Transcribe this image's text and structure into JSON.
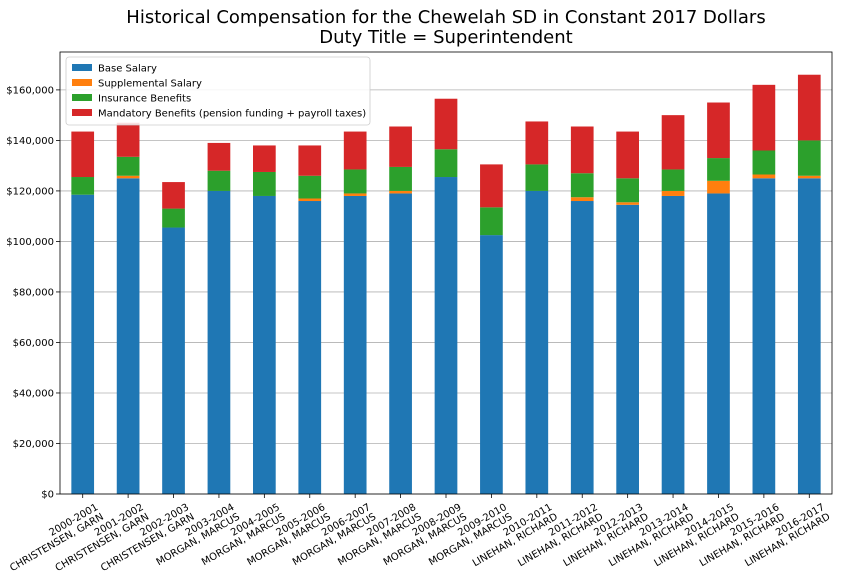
{
  "chart_data": {
    "type": "bar",
    "stacked": true,
    "title": "Historical Compensation for the Chewelah SD in Constant 2017 Dollars",
    "subtitle": "Duty Title = Superintendent",
    "xlabel": "",
    "ylabel": "",
    "ylim": [
      0,
      175000
    ],
    "yticks": [
      0,
      20000,
      40000,
      60000,
      80000,
      100000,
      120000,
      140000,
      160000
    ],
    "ytick_labels": [
      "$0",
      "$20,000",
      "$40,000",
      "$60,000",
      "$80,000",
      "$100,000",
      "$120,000",
      "$140,000",
      "$160,000"
    ],
    "grid": "y",
    "legend_position": "top-left",
    "categories": [
      [
        "2000-2001",
        "CHRISTENSEN, GARN"
      ],
      [
        "2001-2002",
        "CHRISTENSEN, GARN"
      ],
      [
        "2002-2003",
        "CHRISTENSEN, GARN"
      ],
      [
        "2003-2004",
        "MORGAN, MARCUS"
      ],
      [
        "2004-2005",
        "MORGAN, MARCUS"
      ],
      [
        "2005-2006",
        "MORGAN, MARCUS"
      ],
      [
        "2006-2007",
        "MORGAN, MARCUS"
      ],
      [
        "2007-2008",
        "MORGAN, MARCUS"
      ],
      [
        "2008-2009",
        "MORGAN, MARCUS"
      ],
      [
        "2009-2010",
        "MORGAN, MARCUS"
      ],
      [
        "2010-2011",
        "LINEHAN, RICHARD"
      ],
      [
        "2011-2012",
        "LINEHAN, RICHARD"
      ],
      [
        "2012-2013",
        "LINEHAN, RICHARD"
      ],
      [
        "2013-2014",
        "LINEHAN, RICHARD"
      ],
      [
        "2014-2015",
        "LINEHAN, RICHARD"
      ],
      [
        "2015-2016",
        "LINEHAN, RICHARD"
      ],
      [
        "2016-2017",
        "LINEHAN, RICHARD"
      ]
    ],
    "series": [
      {
        "name": "Base Salary",
        "color": "#1f77b4",
        "values": [
          118500,
          125000,
          105500,
          120000,
          118000,
          116000,
          118000,
          119000,
          125500,
          102500,
          120000,
          116000,
          114500,
          118000,
          119000,
          125000,
          125000
        ]
      },
      {
        "name": "Supplemental Salary",
        "color": "#ff7f0e",
        "values": [
          0,
          1000,
          0,
          0,
          0,
          1000,
          1000,
          1000,
          0,
          0,
          0,
          1500,
          1000,
          2000,
          5000,
          1500,
          1000
        ]
      },
      {
        "name": "Insurance Benefits",
        "color": "#2ca02c",
        "values": [
          7000,
          7500,
          7500,
          8000,
          9500,
          9000,
          9500,
          9500,
          11000,
          11000,
          10500,
          9500,
          9500,
          8500,
          9000,
          9500,
          14000
        ]
      },
      {
        "name": "Mandatory Benefits (pension funding + payroll taxes)",
        "color": "#d62728",
        "values": [
          18000,
          13500,
          10500,
          11000,
          10500,
          12000,
          15000,
          16000,
          20000,
          17000,
          17000,
          18500,
          18500,
          21500,
          22000,
          26000,
          26000
        ]
      }
    ]
  }
}
